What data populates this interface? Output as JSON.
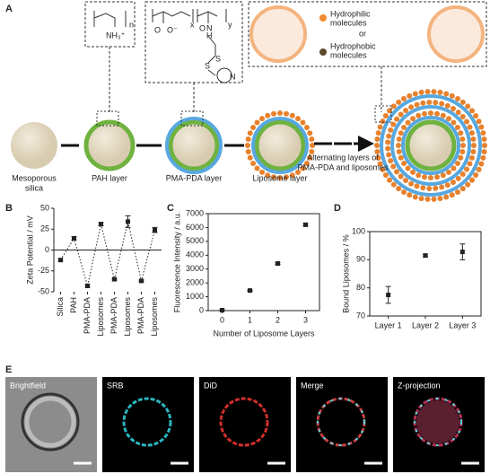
{
  "panel_labels": {
    "a": "A",
    "e": "E"
  },
  "diagram": {
    "stages": [
      "Mesoporous",
      "silica",
      "PAH layer",
      "PMA-PDA layer",
      "Liposome layer"
    ],
    "alternating": [
      "Alternating layers of",
      "PMA-PDA and liposomes"
    ],
    "legend": {
      "hydrophilic": [
        "Hydrophilic",
        "molecules"
      ],
      "or": "or",
      "hydrophobic": [
        "Hydrophobic",
        "molecules"
      ]
    },
    "pah_structure": [
      "n",
      "NH₃⁺"
    ],
    "pma_structure": [
      "x",
      "y",
      "O",
      "O⁻",
      "O",
      "N",
      "H",
      "S",
      "S",
      "N"
    ]
  },
  "chart_data": [
    {
      "type": "line",
      "label": "B",
      "ylabel": "Zeta Potential / mV",
      "categories": [
        "Silica",
        "PAH",
        "PMA-PDA",
        "Liposomes",
        "PMA-PDA",
        "Liposomes",
        "PMA-PDA",
        "Liposomes"
      ],
      "values": [
        -12,
        14,
        -43,
        31,
        -35,
        34,
        -37,
        24
      ],
      "errors": [
        1.5,
        2,
        1.5,
        2,
        1,
        7,
        1,
        3
      ],
      "ylim": [
        -50,
        50
      ],
      "yticks": [
        -50,
        -25,
        0,
        25,
        50
      ],
      "color": "#222222",
      "line_style": "dotted",
      "box": false
    },
    {
      "type": "scatter",
      "label": "C",
      "ylabel": "Fluorescence Intensity / a.u.",
      "xlabel": "Number of Liposome Layers",
      "categories": [
        "0",
        "1",
        "2",
        "3"
      ],
      "values": [
        30,
        1450,
        3400,
        6200
      ],
      "errors": [
        50,
        40,
        60,
        80
      ],
      "ylim": [
        0,
        7000
      ],
      "yticks": [
        0,
        1000,
        2000,
        3000,
        4000,
        5000,
        6000,
        7000
      ],
      "color": "#222222",
      "box": true
    },
    {
      "type": "scatter",
      "label": "D",
      "ylabel": "Bound Liposomes / %",
      "categories": [
        "Layer 1",
        "Layer 2",
        "Layer 3"
      ],
      "values": [
        77.5,
        91.5,
        92.8
      ],
      "errors": [
        3,
        0.5,
        2.8
      ],
      "ylim": [
        70,
        100
      ],
      "yticks": [
        70,
        80,
        90,
        100
      ],
      "color": "#222222",
      "box": true
    }
  ],
  "images": {
    "panels": [
      "Brightfield",
      "SRB",
      "DiD",
      "Merge",
      "Z-projection"
    ]
  }
}
